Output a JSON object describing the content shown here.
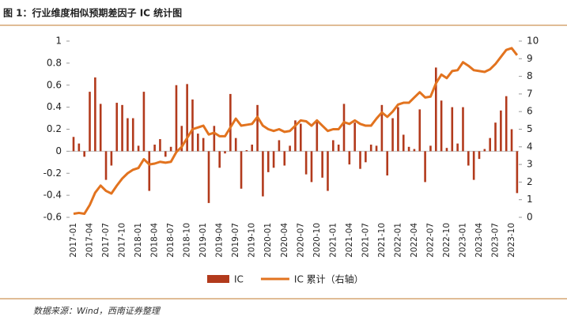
{
  "chart_data": {
    "type": "bar",
    "title": "图 1：行业维度相似预期差因子 IC 统计图",
    "source": "数据来源：Wind，西南证券整理",
    "categories": [
      "2017-01",
      null,
      null,
      "2017-04",
      null,
      null,
      "2017-07",
      null,
      null,
      "2017-10",
      null,
      null,
      "2018-01",
      null,
      null,
      "2018-04",
      null,
      null,
      "2018-07",
      null,
      null,
      "2018-10",
      null,
      null,
      "2019-01",
      null,
      null,
      "2019-04",
      null,
      null,
      "2019-07",
      null,
      null,
      "2019-10",
      null,
      null,
      "2020-01",
      null,
      null,
      "2020-04",
      null,
      null,
      "2020-07",
      null,
      null,
      "2020-10",
      null,
      null,
      "2021-01",
      null,
      null,
      "2021-04",
      null,
      null,
      "2021-07",
      null,
      null,
      "2021-10",
      null,
      null,
      "2022-01",
      null,
      null,
      "2022-04",
      null,
      null,
      "2022-07",
      null,
      null,
      "2022-10",
      null,
      null,
      "2023-01",
      null,
      null,
      "2023-04",
      null,
      null,
      "2023-07",
      null,
      null,
      "2023-10",
      null
    ],
    "series": [
      {
        "name": "IC",
        "type": "bar",
        "color": "#b23a1c",
        "values": [
          0.13,
          0.07,
          -0.05,
          0.54,
          0.67,
          0.43,
          -0.26,
          -0.13,
          0.44,
          0.42,
          0.3,
          0.3,
          0.05,
          0.54,
          -0.36,
          0.06,
          0.11,
          -0.05,
          0.04,
          0.6,
          0.23,
          0.61,
          0.47,
          0.16,
          0.12,
          -0.47,
          0.23,
          -0.15,
          -0.02,
          0.52,
          0.12,
          -0.34,
          0.01,
          0.06,
          0.42,
          -0.41,
          -0.19,
          -0.15,
          0.1,
          -0.13,
          0.05,
          0.28,
          0.25,
          -0.21,
          -0.28,
          0.28,
          -0.24,
          -0.36,
          0.1,
          0.06,
          0.43,
          -0.12,
          0.26,
          -0.16,
          -0.1,
          0.06,
          0.05,
          0.42,
          -0.22,
          0.3,
          0.4,
          0.15,
          0.04,
          0.02,
          0.38,
          -0.28,
          0.05,
          0.76,
          0.46,
          0.03,
          0.4,
          0.07,
          0.4,
          -0.13,
          -0.26,
          -0.07,
          0.02,
          0.12,
          0.26,
          0.37,
          0.5,
          0.2,
          -0.38
        ]
      },
      {
        "name": "IC 累计（右轴）",
        "type": "line",
        "axis": "y2",
        "color": "#e2731f",
        "values": [
          0.2,
          0.25,
          0.2,
          0.7,
          1.4,
          1.8,
          1.5,
          1.35,
          1.8,
          2.2,
          2.5,
          2.7,
          2.8,
          3.3,
          3.0,
          3.05,
          3.15,
          3.1,
          3.15,
          3.7,
          4.0,
          4.5,
          5.0,
          5.1,
          5.2,
          4.7,
          4.8,
          4.6,
          4.6,
          5.1,
          5.6,
          5.2,
          5.25,
          5.3,
          5.7,
          5.2,
          5.0,
          4.9,
          5.0,
          4.85,
          4.9,
          5.2,
          5.5,
          5.45,
          5.2,
          5.5,
          5.2,
          4.9,
          5.0,
          5.0,
          5.4,
          5.3,
          5.5,
          5.3,
          5.2,
          5.2,
          5.6,
          5.95,
          5.7,
          6.0,
          6.4,
          6.5,
          6.5,
          6.8,
          7.1,
          6.8,
          6.85,
          7.6,
          8.1,
          7.9,
          8.3,
          8.35,
          8.8,
          8.6,
          8.35,
          8.3,
          8.25,
          8.4,
          8.7,
          9.1,
          9.5,
          9.6,
          9.2
        ]
      }
    ],
    "ylim": [
      -0.6,
      1
    ],
    "yticks": [
      -0.6,
      -0.4,
      -0.2,
      0,
      0.2,
      0.4,
      0.6,
      0.8,
      1
    ],
    "y2lim": [
      0,
      10
    ],
    "y2ticks": [
      0,
      1,
      2,
      3,
      4,
      5,
      6,
      7,
      8,
      9,
      10
    ],
    "legend": "bottom"
  }
}
